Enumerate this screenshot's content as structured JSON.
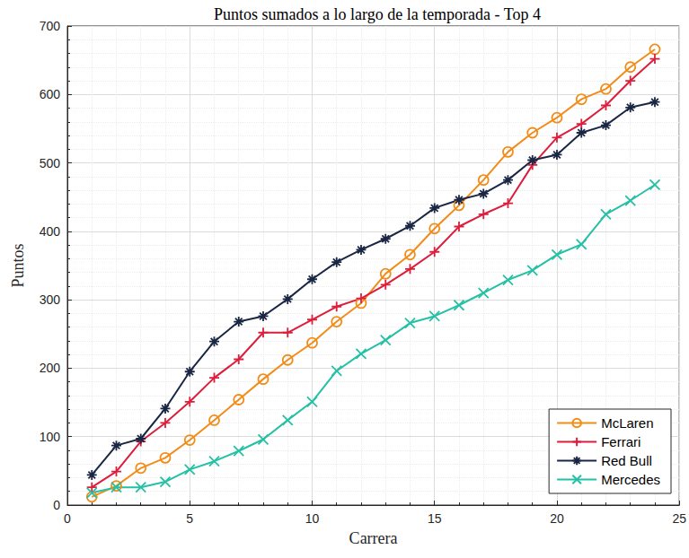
{
  "chart_data": {
    "type": "line",
    "title": "Puntos sumados a lo largo de la temporada - Top 4",
    "xlabel": "Carrera",
    "ylabel": "Puntos",
    "x": [
      1,
      2,
      3,
      4,
      5,
      6,
      7,
      8,
      9,
      10,
      11,
      12,
      13,
      14,
      15,
      16,
      17,
      18,
      19,
      20,
      21,
      22,
      23,
      24
    ],
    "series": [
      {
        "name": "McLaren",
        "color": "#f28c18",
        "marker": "circle",
        "values": [
          12,
          28,
          54,
          69,
          95,
          124,
          154,
          184,
          212,
          237,
          268,
          295,
          338,
          366,
          404,
          438,
          475,
          516,
          544,
          566,
          593,
          608,
          640,
          666
        ]
      },
      {
        "name": "Ferrari",
        "color": "#dc1e3c",
        "marker": "plus",
        "values": [
          26,
          49,
          93,
          120,
          151,
          186,
          213,
          252,
          252,
          271,
          290,
          302,
          322,
          345,
          370,
          407,
          425,
          441,
          497,
          537,
          557,
          584,
          620,
          652
        ]
      },
      {
        "name": "Red Bull",
        "color": "#1a2744",
        "marker": "asterisk",
        "values": [
          44,
          87,
          97,
          141,
          195,
          239,
          268,
          276,
          301,
          330,
          355,
          373,
          389,
          408,
          434,
          446,
          455,
          475,
          504,
          512,
          544,
          555,
          581,
          589
        ]
      },
      {
        "name": "Mercedes",
        "color": "#25c0a5",
        "marker": "x",
        "values": [
          18,
          26,
          26,
          34,
          52,
          64,
          79,
          96,
          124,
          151,
          196,
          221,
          241,
          266,
          276,
          292,
          310,
          329,
          343,
          366,
          381,
          425,
          445,
          468
        ]
      }
    ],
    "xlim": [
      0,
      25
    ],
    "xticks": [
      0,
      5,
      10,
      15,
      20,
      25
    ],
    "ylim": [
      0,
      700
    ],
    "yticks": [
      0,
      100,
      200,
      300,
      400,
      500,
      600,
      700
    ],
    "grid": true,
    "legend": "lower right"
  }
}
